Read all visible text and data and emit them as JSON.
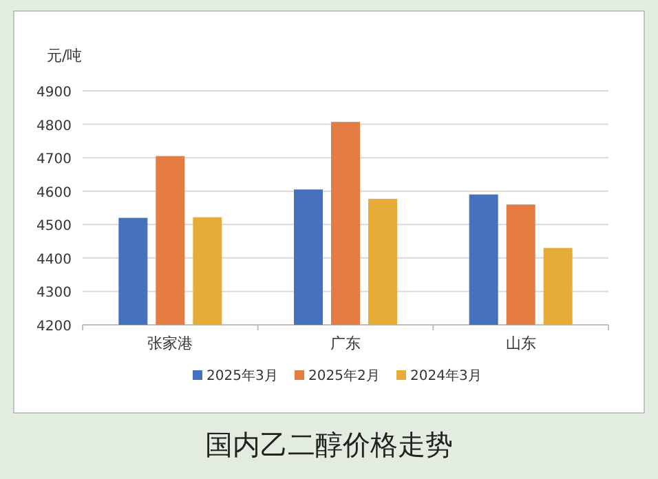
{
  "chart_data": {
    "type": "bar",
    "title": "国内乙二醇价格走势",
    "ylabel": "元/吨",
    "categories": [
      "张家港",
      "广东",
      "山东"
    ],
    "series": [
      {
        "name": "2025年3月",
        "color": "#4672bd",
        "values": [
          4520,
          4605,
          4590
        ]
      },
      {
        "name": "2025年2月",
        "color": "#e57d42",
        "values": [
          4705,
          4807,
          4560
        ]
      },
      {
        "name": "2024年3月",
        "color": "#e5ad38",
        "values": [
          4522,
          4577,
          4430
        ]
      }
    ],
    "ylim": [
      4200,
      4900
    ],
    "yticks": [
      4200,
      4300,
      4400,
      4500,
      4600,
      4700,
      4800,
      4900
    ],
    "grid": "y",
    "legend": "bottom"
  }
}
